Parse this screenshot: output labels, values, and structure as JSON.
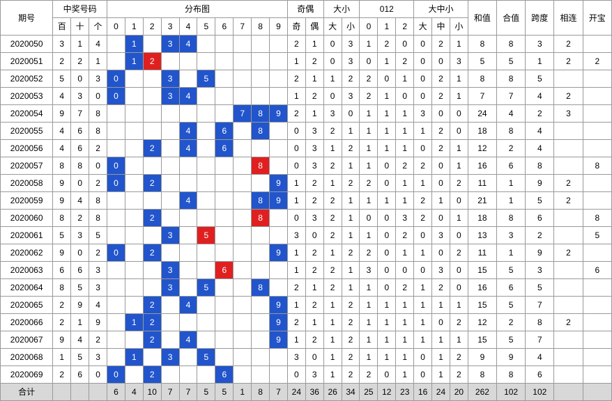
{
  "type": "lottery-distribution-table",
  "colors": {
    "blue": "#2255cc",
    "red": "#e02020",
    "totalRow": "#d8d8d8",
    "border": "#999999",
    "text": "#000000",
    "cellText": "#ffffff"
  },
  "fontSize": 12,
  "headers": {
    "period": "期号",
    "winningGroup": "中奖号码",
    "winning": [
      "百",
      "十",
      "个"
    ],
    "distGroup": "分布图",
    "dist": [
      "0",
      "1",
      "2",
      "3",
      "4",
      "5",
      "6",
      "7",
      "8",
      "9"
    ],
    "oddEvenGroup": "奇偶",
    "oddEven": [
      "奇",
      "偶"
    ],
    "bigSmallGroup": "大小",
    "bigSmall": [
      "大",
      "小"
    ],
    "zotGroup": "012",
    "zot": [
      "0",
      "1",
      "2"
    ],
    "dmsGroup": "大中小",
    "dms": [
      "大",
      "中",
      "小"
    ],
    "sum": "和值",
    "heSum": "合值",
    "span": "跨度",
    "consec": "相连",
    "kaibao": "开宝",
    "total": "合计"
  },
  "rows": [
    {
      "period": "2020050",
      "win": [
        "3",
        "1",
        "4"
      ],
      "dist": [
        {
          "k": "blue",
          "v": "1"
        },
        {
          "k": "blue",
          "v": "3"
        },
        {
          "k": "blue",
          "v": "4"
        }
      ],
      "pos": [
        1,
        3,
        4
      ],
      "oe": [
        "2",
        "1"
      ],
      "bs": [
        "0",
        "3"
      ],
      "zot": [
        "1",
        "2",
        "0"
      ],
      "dms": [
        "0",
        "2",
        "1"
      ],
      "sum": "8",
      "he": "8",
      "span": "3",
      "consec": "2",
      "kb": ""
    },
    {
      "period": "2020051",
      "win": [
        "2",
        "2",
        "1"
      ],
      "dist": [
        {
          "k": "blue",
          "v": "1"
        },
        {
          "k": "red",
          "v": "2"
        }
      ],
      "pos": [
        1,
        2
      ],
      "oe": [
        "1",
        "2"
      ],
      "bs": [
        "0",
        "3"
      ],
      "zot": [
        "0",
        "1",
        "2"
      ],
      "dms": [
        "0",
        "0",
        "3"
      ],
      "sum": "5",
      "he": "5",
      "span": "1",
      "consec": "2",
      "kb": "2"
    },
    {
      "period": "2020052",
      "win": [
        "5",
        "0",
        "3"
      ],
      "dist": [
        {
          "k": "blue",
          "v": "0"
        },
        {
          "k": "blue",
          "v": "3"
        },
        {
          "k": "blue",
          "v": "5"
        }
      ],
      "pos": [
        0,
        3,
        5
      ],
      "oe": [
        "2",
        "1"
      ],
      "bs": [
        "1",
        "2"
      ],
      "zot": [
        "2",
        "0",
        "1"
      ],
      "dms": [
        "0",
        "2",
        "1"
      ],
      "sum": "8",
      "he": "8",
      "span": "5",
      "consec": "",
      "kb": ""
    },
    {
      "period": "2020053",
      "win": [
        "4",
        "3",
        "0"
      ],
      "dist": [
        {
          "k": "blue",
          "v": "0"
        },
        {
          "k": "blue",
          "v": "3"
        },
        {
          "k": "blue",
          "v": "4"
        }
      ],
      "pos": [
        0,
        3,
        4
      ],
      "oe": [
        "1",
        "2"
      ],
      "bs": [
        "0",
        "3"
      ],
      "zot": [
        "2",
        "1",
        "0"
      ],
      "dms": [
        "0",
        "2",
        "1"
      ],
      "sum": "7",
      "he": "7",
      "span": "4",
      "consec": "2",
      "kb": ""
    },
    {
      "period": "2020054",
      "win": [
        "9",
        "7",
        "8"
      ],
      "dist": [
        {
          "k": "blue",
          "v": "7"
        },
        {
          "k": "blue",
          "v": "8"
        },
        {
          "k": "blue",
          "v": "9"
        }
      ],
      "pos": [
        7,
        8,
        9
      ],
      "oe": [
        "2",
        "1"
      ],
      "bs": [
        "3",
        "0"
      ],
      "zot": [
        "1",
        "1",
        "1"
      ],
      "dms": [
        "3",
        "0",
        "0"
      ],
      "sum": "24",
      "he": "4",
      "span": "2",
      "consec": "3",
      "kb": ""
    },
    {
      "period": "2020055",
      "win": [
        "4",
        "6",
        "8"
      ],
      "dist": [
        {
          "k": "blue",
          "v": "4"
        },
        {
          "k": "blue",
          "v": "6"
        },
        {
          "k": "blue",
          "v": "8"
        }
      ],
      "pos": [
        4,
        6,
        8
      ],
      "oe": [
        "0",
        "3"
      ],
      "bs": [
        "2",
        "1"
      ],
      "zot": [
        "1",
        "1",
        "1"
      ],
      "dms": [
        "1",
        "2",
        "0"
      ],
      "sum": "18",
      "he": "8",
      "span": "4",
      "consec": "",
      "kb": ""
    },
    {
      "period": "2020056",
      "win": [
        "4",
        "6",
        "2"
      ],
      "dist": [
        {
          "k": "blue",
          "v": "2"
        },
        {
          "k": "blue",
          "v": "4"
        },
        {
          "k": "blue",
          "v": "6"
        }
      ],
      "pos": [
        2,
        4,
        6
      ],
      "oe": [
        "0",
        "3"
      ],
      "bs": [
        "1",
        "2"
      ],
      "zot": [
        "1",
        "1",
        "1"
      ],
      "dms": [
        "0",
        "2",
        "1"
      ],
      "sum": "12",
      "he": "2",
      "span": "4",
      "consec": "",
      "kb": ""
    },
    {
      "period": "2020057",
      "win": [
        "8",
        "8",
        "0"
      ],
      "dist": [
        {
          "k": "blue",
          "v": "0"
        },
        {
          "k": "red",
          "v": "8"
        }
      ],
      "pos": [
        0,
        8
      ],
      "oe": [
        "0",
        "3"
      ],
      "bs": [
        "2",
        "1"
      ],
      "zot": [
        "1",
        "0",
        "2"
      ],
      "dms": [
        "2",
        "0",
        "1"
      ],
      "sum": "16",
      "he": "6",
      "span": "8",
      "consec": "",
      "kb": "8"
    },
    {
      "period": "2020058",
      "win": [
        "9",
        "0",
        "2"
      ],
      "dist": [
        {
          "k": "blue",
          "v": "0"
        },
        {
          "k": "blue",
          "v": "2"
        },
        {
          "k": "blue",
          "v": "9"
        }
      ],
      "pos": [
        0,
        2,
        9
      ],
      "oe": [
        "1",
        "2"
      ],
      "bs": [
        "1",
        "2"
      ],
      "zot": [
        "2",
        "0",
        "1"
      ],
      "dms": [
        "1",
        "0",
        "2"
      ],
      "sum": "11",
      "he": "1",
      "span": "9",
      "consec": "2",
      "kb": ""
    },
    {
      "period": "2020059",
      "win": [
        "9",
        "4",
        "8"
      ],
      "dist": [
        {
          "k": "blue",
          "v": "4"
        },
        {
          "k": "blue",
          "v": "8"
        },
        {
          "k": "blue",
          "v": "9"
        }
      ],
      "pos": [
        4,
        8,
        9
      ],
      "oe": [
        "1",
        "2"
      ],
      "bs": [
        "2",
        "1"
      ],
      "zot": [
        "1",
        "1",
        "1"
      ],
      "dms": [
        "2",
        "1",
        "0"
      ],
      "sum": "21",
      "he": "1",
      "span": "5",
      "consec": "2",
      "kb": ""
    },
    {
      "period": "2020060",
      "win": [
        "8",
        "2",
        "8"
      ],
      "dist": [
        {
          "k": "blue",
          "v": "2"
        },
        {
          "k": "red",
          "v": "8"
        }
      ],
      "pos": [
        2,
        8
      ],
      "oe": [
        "0",
        "3"
      ],
      "bs": [
        "2",
        "1"
      ],
      "zot": [
        "0",
        "0",
        "3"
      ],
      "dms": [
        "2",
        "0",
        "1"
      ],
      "sum": "18",
      "he": "8",
      "span": "6",
      "consec": "",
      "kb": "8"
    },
    {
      "period": "2020061",
      "win": [
        "5",
        "3",
        "5"
      ],
      "dist": [
        {
          "k": "blue",
          "v": "3"
        },
        {
          "k": "red",
          "v": "5"
        }
      ],
      "pos": [
        3,
        5
      ],
      "oe": [
        "3",
        "0"
      ],
      "bs": [
        "2",
        "1"
      ],
      "zot": [
        "1",
        "0",
        "2"
      ],
      "dms": [
        "0",
        "3",
        "0"
      ],
      "sum": "13",
      "he": "3",
      "span": "2",
      "consec": "",
      "kb": "5"
    },
    {
      "period": "2020062",
      "win": [
        "9",
        "0",
        "2"
      ],
      "dist": [
        {
          "k": "blue",
          "v": "0"
        },
        {
          "k": "blue",
          "v": "2"
        },
        {
          "k": "blue",
          "v": "9"
        }
      ],
      "pos": [
        0,
        2,
        9
      ],
      "oe": [
        "1",
        "2"
      ],
      "bs": [
        "1",
        "2"
      ],
      "zot": [
        "2",
        "0",
        "1"
      ],
      "dms": [
        "1",
        "0",
        "2"
      ],
      "sum": "11",
      "he": "1",
      "span": "9",
      "consec": "2",
      "kb": ""
    },
    {
      "period": "2020063",
      "win": [
        "6",
        "6",
        "3"
      ],
      "dist": [
        {
          "k": "blue",
          "v": "3"
        },
        {
          "k": "red",
          "v": "6"
        }
      ],
      "pos": [
        3,
        6
      ],
      "oe": [
        "1",
        "2"
      ],
      "bs": [
        "2",
        "1"
      ],
      "zot": [
        "3",
        "0",
        "0"
      ],
      "dms": [
        "0",
        "3",
        "0"
      ],
      "sum": "15",
      "he": "5",
      "span": "3",
      "consec": "",
      "kb": "6"
    },
    {
      "period": "2020064",
      "win": [
        "8",
        "5",
        "3"
      ],
      "dist": [
        {
          "k": "blue",
          "v": "3"
        },
        {
          "k": "blue",
          "v": "5"
        },
        {
          "k": "blue",
          "v": "8"
        }
      ],
      "pos": [
        3,
        5,
        8
      ],
      "oe": [
        "2",
        "1"
      ],
      "bs": [
        "2",
        "1"
      ],
      "zot": [
        "1",
        "0",
        "2"
      ],
      "dms": [
        "1",
        "2",
        "0"
      ],
      "sum": "16",
      "he": "6",
      "span": "5",
      "consec": "",
      "kb": ""
    },
    {
      "period": "2020065",
      "win": [
        "2",
        "9",
        "4"
      ],
      "dist": [
        {
          "k": "blue",
          "v": "2"
        },
        {
          "k": "blue",
          "v": "4"
        },
        {
          "k": "blue",
          "v": "9"
        }
      ],
      "pos": [
        2,
        4,
        9
      ],
      "oe": [
        "1",
        "2"
      ],
      "bs": [
        "1",
        "2"
      ],
      "zot": [
        "1",
        "1",
        "1"
      ],
      "dms": [
        "1",
        "1",
        "1"
      ],
      "sum": "15",
      "he": "5",
      "span": "7",
      "consec": "",
      "kb": ""
    },
    {
      "period": "2020066",
      "win": [
        "2",
        "1",
        "9"
      ],
      "dist": [
        {
          "k": "blue",
          "v": "1"
        },
        {
          "k": "blue",
          "v": "2"
        },
        {
          "k": "blue",
          "v": "9"
        }
      ],
      "pos": [
        1,
        2,
        9
      ],
      "oe": [
        "2",
        "1"
      ],
      "bs": [
        "1",
        "2"
      ],
      "zot": [
        "1",
        "1",
        "1"
      ],
      "dms": [
        "1",
        "0",
        "2"
      ],
      "sum": "12",
      "he": "2",
      "span": "8",
      "consec": "2",
      "kb": ""
    },
    {
      "period": "2020067",
      "win": [
        "9",
        "4",
        "2"
      ],
      "dist": [
        {
          "k": "blue",
          "v": "2"
        },
        {
          "k": "blue",
          "v": "4"
        },
        {
          "k": "blue",
          "v": "9"
        }
      ],
      "pos": [
        2,
        4,
        9
      ],
      "oe": [
        "1",
        "2"
      ],
      "bs": [
        "1",
        "2"
      ],
      "zot": [
        "1",
        "1",
        "1"
      ],
      "dms": [
        "1",
        "1",
        "1"
      ],
      "sum": "15",
      "he": "5",
      "span": "7",
      "consec": "",
      "kb": ""
    },
    {
      "period": "2020068",
      "win": [
        "1",
        "5",
        "3"
      ],
      "dist": [
        {
          "k": "blue",
          "v": "1"
        },
        {
          "k": "blue",
          "v": "3"
        },
        {
          "k": "blue",
          "v": "5"
        }
      ],
      "pos": [
        1,
        3,
        5
      ],
      "oe": [
        "3",
        "0"
      ],
      "bs": [
        "1",
        "2"
      ],
      "zot": [
        "1",
        "1",
        "1"
      ],
      "dms": [
        "0",
        "1",
        "2"
      ],
      "sum": "9",
      "he": "9",
      "span": "4",
      "consec": "",
      "kb": ""
    },
    {
      "period": "2020069",
      "win": [
        "2",
        "6",
        "0"
      ],
      "dist": [
        {
          "k": "blue",
          "v": "0"
        },
        {
          "k": "blue",
          "v": "2"
        },
        {
          "k": "blue",
          "v": "6"
        }
      ],
      "pos": [
        0,
        2,
        6
      ],
      "oe": [
        "0",
        "3"
      ],
      "bs": [
        "1",
        "2"
      ],
      "zot": [
        "2",
        "0",
        "1"
      ],
      "dms": [
        "0",
        "1",
        "2"
      ],
      "sum": "8",
      "he": "8",
      "span": "6",
      "consec": "",
      "kb": ""
    }
  ],
  "totals": {
    "dist": [
      "6",
      "4",
      "10",
      "7",
      "7",
      "5",
      "5",
      "1",
      "8",
      "7"
    ],
    "oe": [
      "24",
      "36"
    ],
    "bs": [
      "26",
      "34"
    ],
    "zot": [
      "25",
      "12",
      "23"
    ],
    "dms": [
      "16",
      "24",
      "20"
    ],
    "sum": "262",
    "he": "102",
    "span": "102"
  }
}
